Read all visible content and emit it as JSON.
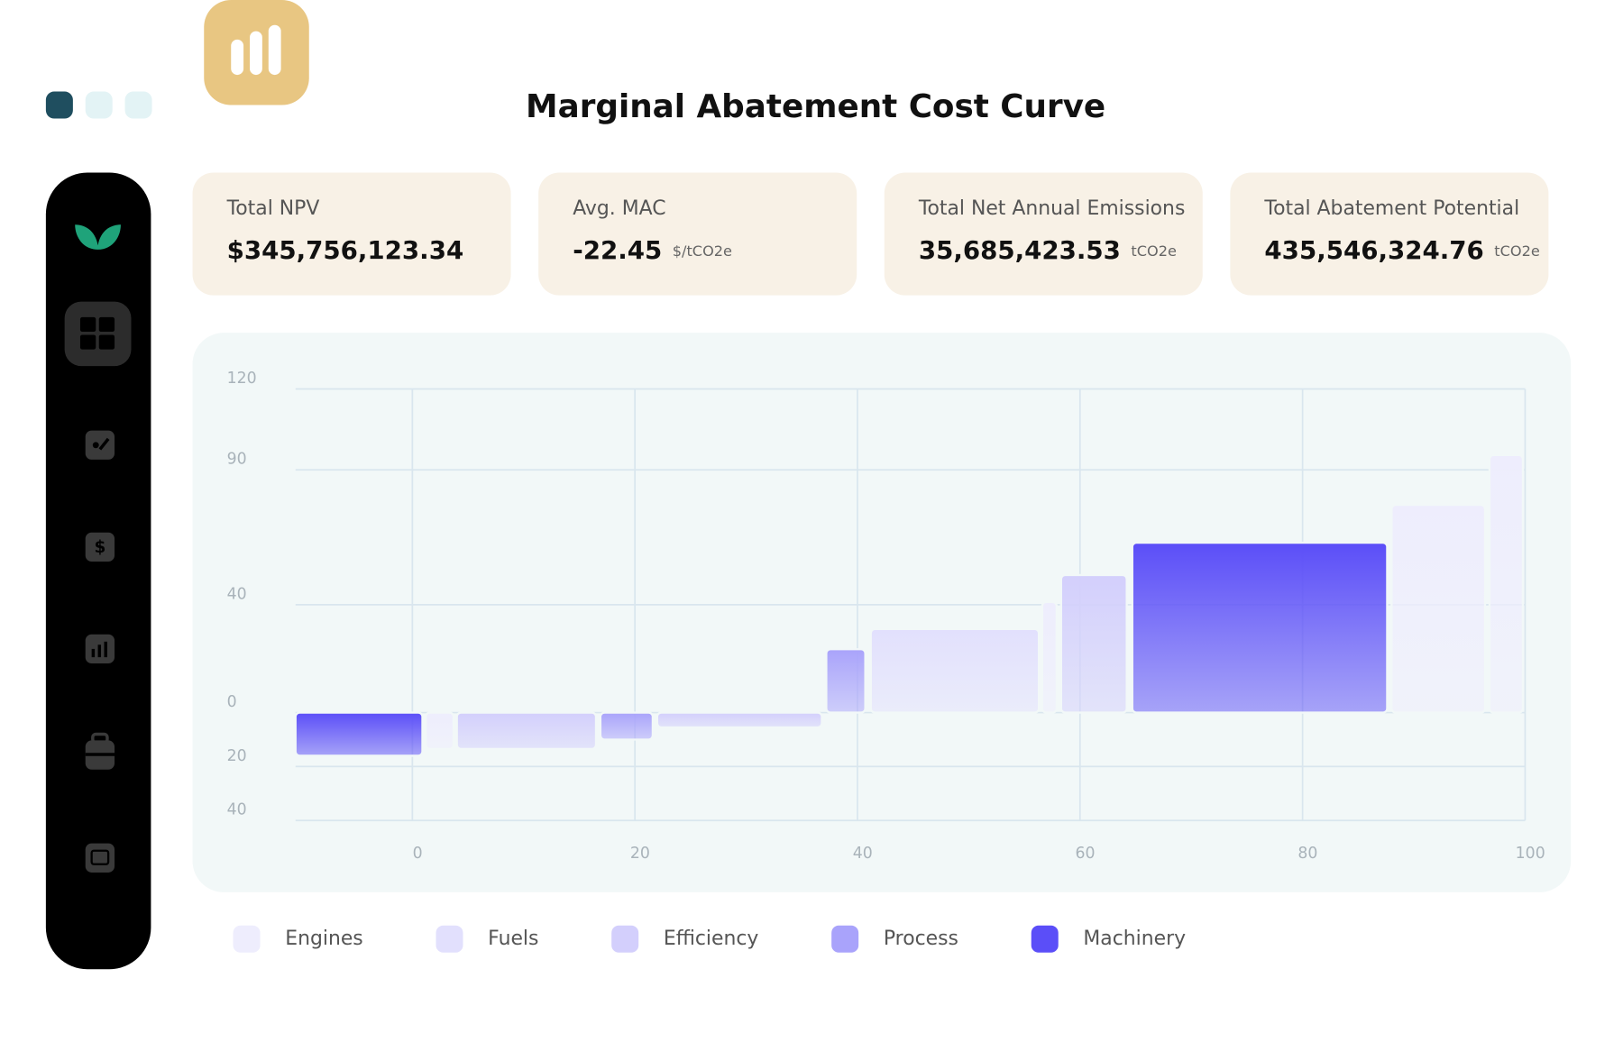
{
  "window_dots": 3,
  "kpis": [
    {
      "label": "Total NPV",
      "value": "$345,756,123.34"
    },
    {
      "label": "Avg. MAC",
      "value": "-22.45",
      "unit": "$/tCO2e"
    },
    {
      "label": "Total Net Annual Emissions",
      "value": "35,685,423.53",
      "unit": "tCO2e"
    },
    {
      "label": "Total Abatement Potential",
      "value": "435,546,324.76",
      "unit": "tCO2e"
    }
  ],
  "chart_data": {
    "type": "macc",
    "title": "Marginal Abatement Cost Curve",
    "xlim": [
      -10.5,
      100
    ],
    "xticks": [
      0,
      20,
      40,
      60,
      80,
      100
    ],
    "ylim": [
      -40,
      120
    ],
    "yticks": [
      {
        "value": -40,
        "label": "40"
      },
      {
        "value": -20,
        "label": "20"
      },
      0,
      40,
      90,
      120
    ],
    "grid": true,
    "legend": "bottom-left",
    "series": [
      {
        "name": "Engines",
        "color": "#eeedfd",
        "x0": [
          1.2,
          56.6,
          88,
          96.8
        ],
        "x1": [
          3.7,
          57.9,
          96.4,
          99.8
        ],
        "values": [
          -13.5,
          41,
          77,
          95.5
        ]
      },
      {
        "name": "Fuels",
        "color": "#e2e0fd",
        "x0": [
          41.2
        ],
        "x1": [
          56.3
        ],
        "values": [
          31
        ]
      },
      {
        "name": "Efficiency",
        "color": "#d3cffc",
        "x0": [
          4.0,
          22,
          58.3
        ],
        "x1": [
          16.5,
          36.8,
          64.2
        ],
        "values": [
          -13.5,
          -5.5,
          51
        ]
      },
      {
        "name": "Process",
        "color": "#a9a3fb",
        "x0": [
          16.9,
          37.2
        ],
        "x1": [
          21.6,
          40.7
        ],
        "values": [
          -10,
          23.5
        ]
      },
      {
        "name": "Machinery",
        "color": "#5b4ef8",
        "x0": [
          -10.5,
          64.7
        ],
        "x1": [
          0.9,
          87.6
        ],
        "values": [
          -16,
          63
        ]
      }
    ]
  }
}
